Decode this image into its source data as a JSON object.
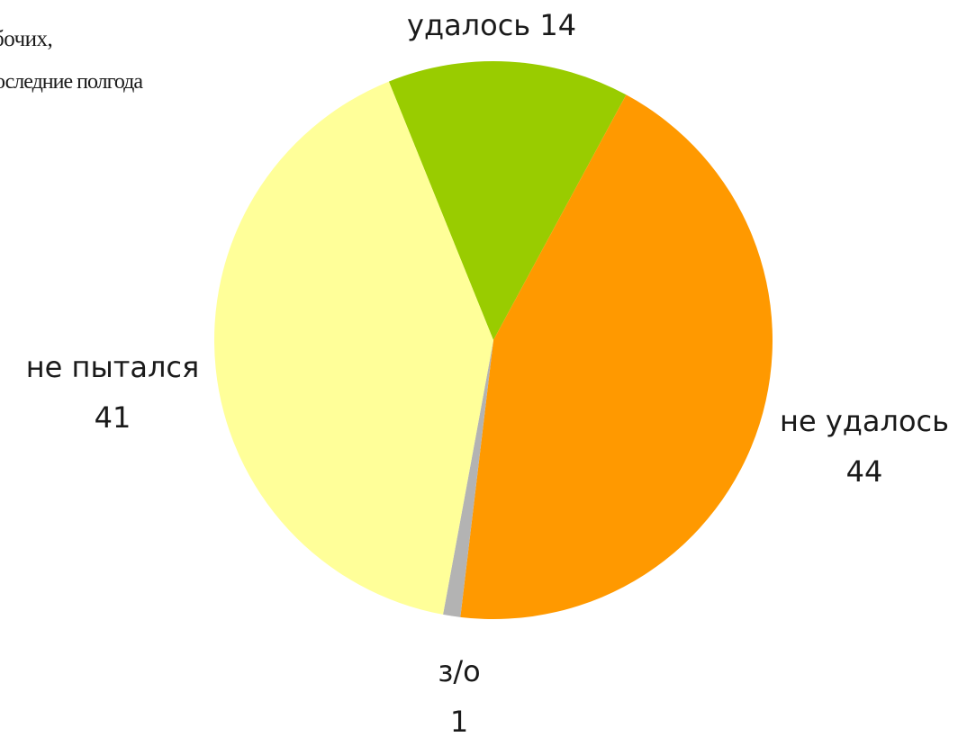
{
  "chart_data": {
    "type": "pie",
    "title_lines": [
      "бочих,",
      "оследние полгода"
    ],
    "categories": [
      "удалось",
      "не удалось",
      "з/о",
      "не пытался"
    ],
    "values": [
      14,
      44,
      1,
      41
    ],
    "colors": [
      "#99cc00",
      "#ff9900",
      "#b3b3b3",
      "#ffff99"
    ],
    "slice_labels": [
      {
        "name": "удалось",
        "value": "14"
      },
      {
        "name": "не удалось",
        "value": "44"
      },
      {
        "name": "з/о",
        "value": "1"
      },
      {
        "name": "не пытался",
        "value": "41"
      }
    ]
  }
}
